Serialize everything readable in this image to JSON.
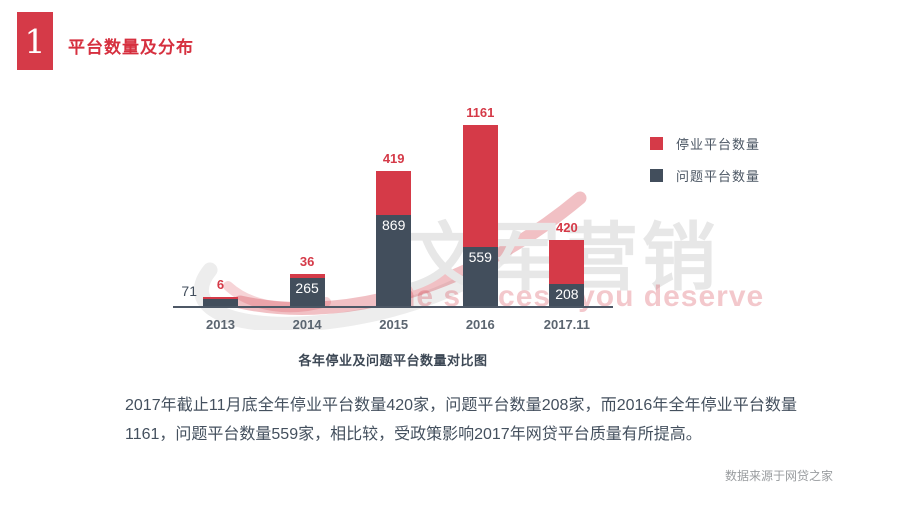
{
  "header": {
    "number": "1",
    "title": "平台数量及分布"
  },
  "colors": {
    "accent_red": "#d53a48",
    "dark_slate": "#424e5c",
    "axis": "#4d5866"
  },
  "chart_data": {
    "type": "bar",
    "stacked": true,
    "categories": [
      "2013",
      "2014",
      "2015",
      "2016",
      "2017.11"
    ],
    "series": [
      {
        "name": "问题平台数量",
        "color": "#424e5c",
        "values": [
          71,
          265,
          869,
          559,
          208
        ]
      },
      {
        "name": "停业平台数量",
        "color": "#d53a48",
        "values": [
          6,
          36,
          419,
          1161,
          420
        ]
      }
    ],
    "title": "各年停业及问题平台数量对比图",
    "xlabel": "",
    "ylabel": "",
    "ylim": [
      0,
      2000
    ],
    "grid": false,
    "legend_position": "top-right",
    "value_labels": true
  },
  "legend": {
    "items": [
      {
        "label": "停业平台数量",
        "color": "#d53a48"
      },
      {
        "label": "问题平台数量",
        "color": "#424e5c"
      }
    ]
  },
  "caption": "各年停业及问题平台数量对比图",
  "paragraph": "2017年截止11月底全年停业平台数量420家，问题平台数量208家，而2016年全年停业平台数量1161，问题平台数量559家，相比较，受政策影响2017年网贷平台质量有所提高。",
  "source_note": "数据来源于网贷之家",
  "watermark": {
    "text": "文军营销",
    "slogan": "the success you deserve"
  }
}
